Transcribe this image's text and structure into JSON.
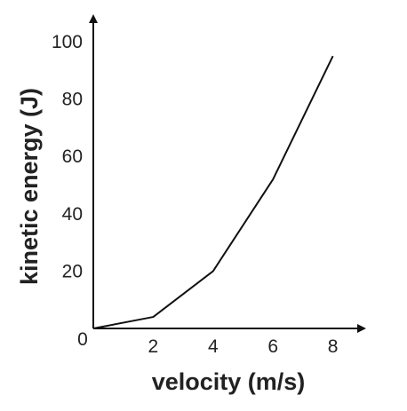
{
  "chart_data": {
    "type": "line",
    "xlabel": "velocity (m/s)",
    "ylabel": "kinetic energy (J)",
    "xlim": [
      0,
      8.6
    ],
    "ylim": [
      0,
      100
    ],
    "x_ticks": [
      2,
      4,
      6,
      8
    ],
    "y_ticks": [
      20,
      40,
      60,
      80,
      100
    ],
    "origin_label": "0",
    "grid": false,
    "series": [
      {
        "x": [
          0,
          2,
          4,
          6,
          8
        ],
        "y": [
          0,
          4,
          20,
          52,
          95
        ]
      }
    ],
    "colors": {
      "line": "#111111",
      "axis": "#111111"
    }
  }
}
